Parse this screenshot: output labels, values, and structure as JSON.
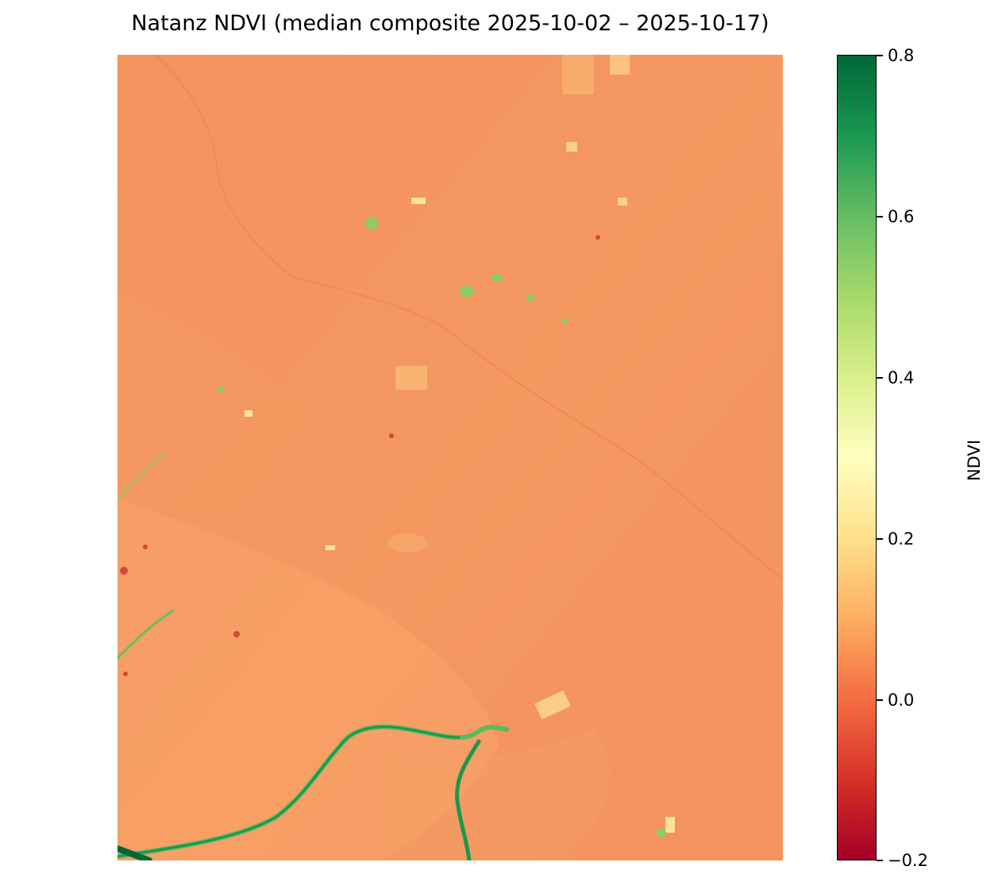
{
  "figure": {
    "title": "Natanz NDVI (median composite 2025-10-02 – 2025-10-17)"
  },
  "map": {
    "colormap": [
      "#a50026",
      "#d73027",
      "#f46d43",
      "#fdae61",
      "#fee08b",
      "#ffffbf",
      "#d9ef8b",
      "#a6d96a",
      "#66bd63",
      "#1a9850",
      "#006837"
    ],
    "base_color": "#f4935e",
    "vegetation_color": "#2e9e4f",
    "sparse_vegetation_color": "#a6d96a",
    "bare_soil_color": "#f9ad6c",
    "negative_color": "#a50026"
  },
  "colorbar": {
    "label": "NDVI",
    "vmin": -0.2,
    "vmax": 0.8,
    "ticks": [
      {
        "value": 0.8,
        "label": "0.8"
      },
      {
        "value": 0.6,
        "label": "0.6"
      },
      {
        "value": 0.4,
        "label": "0.4"
      },
      {
        "value": 0.2,
        "label": "0.2"
      },
      {
        "value": 0.0,
        "label": "0.0"
      },
      {
        "value": -0.2,
        "label": "−0.2"
      }
    ]
  }
}
